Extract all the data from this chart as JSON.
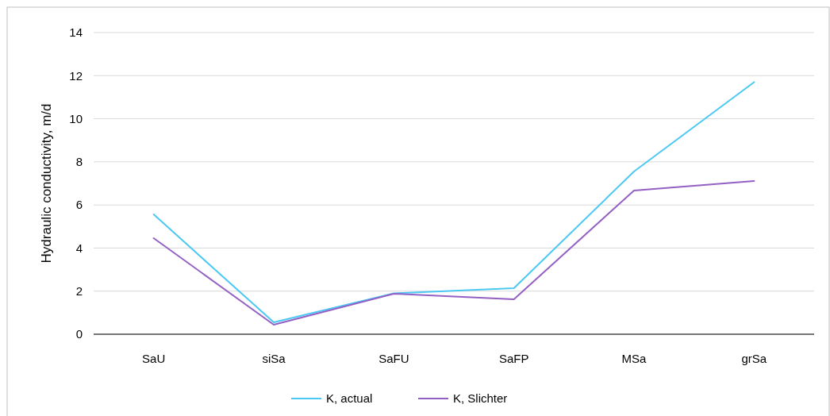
{
  "chart_data": {
    "type": "line",
    "ylabel": "Hydraulic conductivity, m/d",
    "categories": [
      "SaU",
      "siSa",
      "SaFU",
      "SaFP",
      "MSa",
      "grSa"
    ],
    "series": [
      {
        "name": "K, actual",
        "color": "#4cc8f4",
        "values": [
          5.56,
          0.55,
          1.9,
          2.14,
          7.55,
          11.7
        ]
      },
      {
        "name": "K, Slichter",
        "color": "#9460c4",
        "values": [
          4.46,
          0.44,
          1.88,
          1.62,
          6.67,
          7.11
        ]
      }
    ],
    "ylim": [
      0,
      14
    ],
    "yticks": [
      0,
      2,
      4,
      6,
      8,
      10,
      12,
      14
    ],
    "grid": "y",
    "legend": "bottom",
    "marker": "none",
    "line_style": "solid"
  }
}
